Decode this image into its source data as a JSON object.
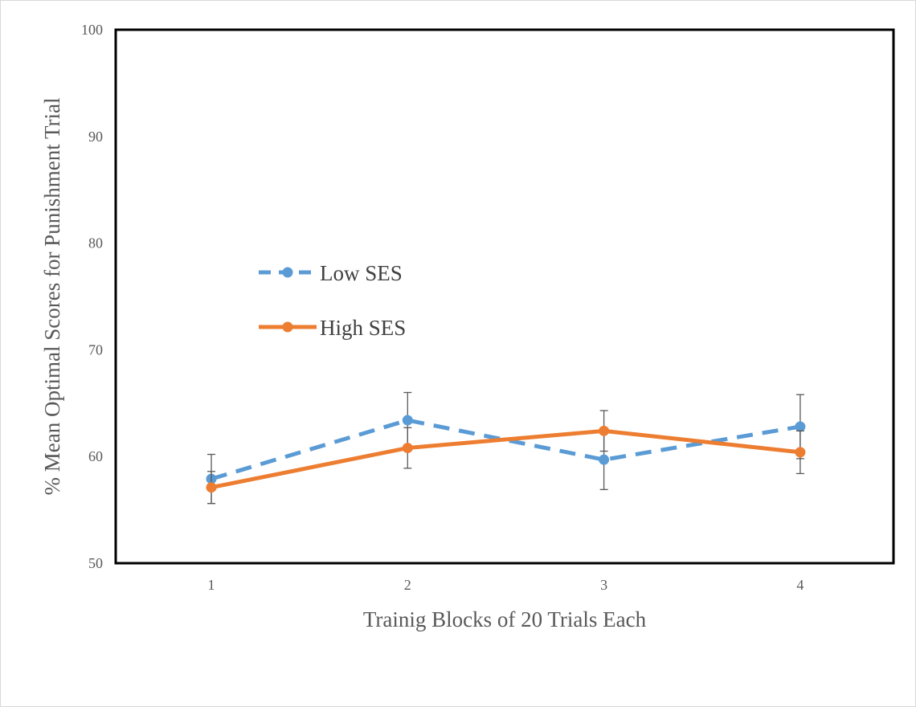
{
  "chart_data": {
    "type": "line",
    "title": "",
    "xlabel": "Trainig Blocks of 20 Trials Each",
    "ylabel": "% Mean Optimal Scores for Punishment Trial",
    "categories": [
      "1",
      "2",
      "3",
      "4"
    ],
    "ylim": [
      50,
      100
    ],
    "yticks": [
      50,
      60,
      70,
      80,
      90,
      100
    ],
    "grid": false,
    "legend_position": "upper-left inside plot",
    "series": [
      {
        "name": "Low SES",
        "style": "dashed",
        "color": "#5B9BD5",
        "values": [
          57.9,
          63.4,
          59.7,
          62.8
        ],
        "error": [
          2.3,
          2.6,
          2.8,
          3.0
        ]
      },
      {
        "name": "High SES",
        "style": "solid",
        "color": "#ED7D31",
        "values": [
          57.1,
          60.8,
          62.4,
          60.4
        ],
        "error": [
          1.5,
          1.9,
          1.9,
          2.0
        ]
      }
    ]
  }
}
